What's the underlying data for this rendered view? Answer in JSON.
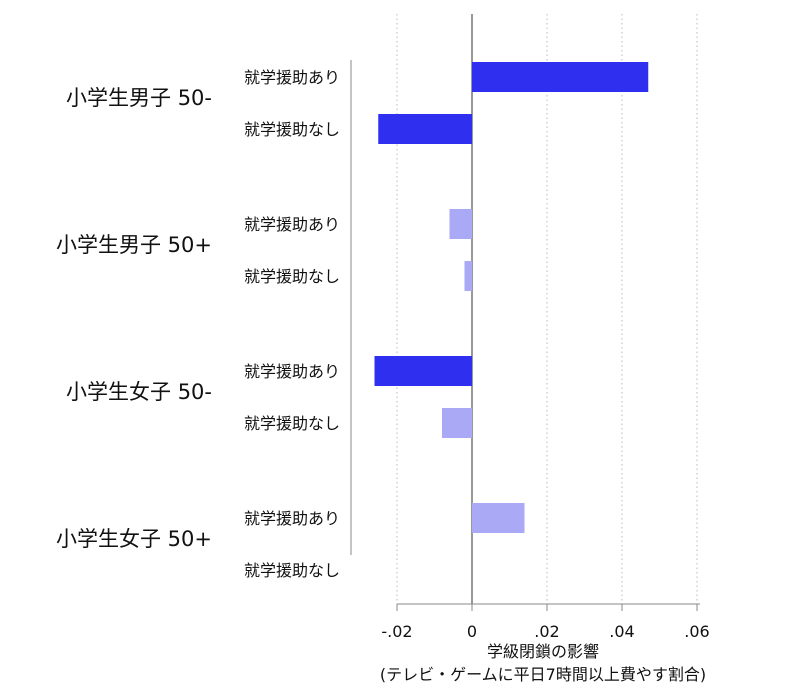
{
  "chart_data": {
    "type": "bar",
    "orientation": "horizontal",
    "xlabel_line1": "学級閉鎖の影響",
    "xlabel_line2": "(テレビ・ゲームに平日7時間以上費やす割合)",
    "xlim": [
      -0.03,
      0.06
    ],
    "xticks": [
      -0.02,
      0,
      0.02,
      0.04,
      0.06
    ],
    "xtick_labels": [
      "-.02",
      "0",
      ".02",
      ".04",
      ".06"
    ],
    "grid": "vertical dotted",
    "groups": [
      {
        "label": "小学生男子 50-",
        "bars": [
          {
            "label": "就学援助あり",
            "value": 0.047,
            "significant": true
          },
          {
            "label": "就学援助なし",
            "value": -0.025,
            "significant": true
          }
        ]
      },
      {
        "label": "小学生男子 50+",
        "bars": [
          {
            "label": "就学援助あり",
            "value": -0.006,
            "significant": false
          },
          {
            "label": "就学援助なし",
            "value": -0.002,
            "significant": false
          }
        ]
      },
      {
        "label": "小学生女子 50-",
        "bars": [
          {
            "label": "就学援助あり",
            "value": -0.026,
            "significant": true
          },
          {
            "label": "就学援助なし",
            "value": -0.008,
            "significant": false
          }
        ]
      },
      {
        "label": "小学生女子 50+",
        "bars": [
          {
            "label": "就学援助あり",
            "value": 0.014,
            "significant": false
          },
          {
            "label": "就学援助なし",
            "value": 0.0,
            "significant": false
          }
        ]
      }
    ],
    "colors": {
      "significant": "#2f2ff0",
      "not_significant": "#a9a9f5"
    }
  }
}
